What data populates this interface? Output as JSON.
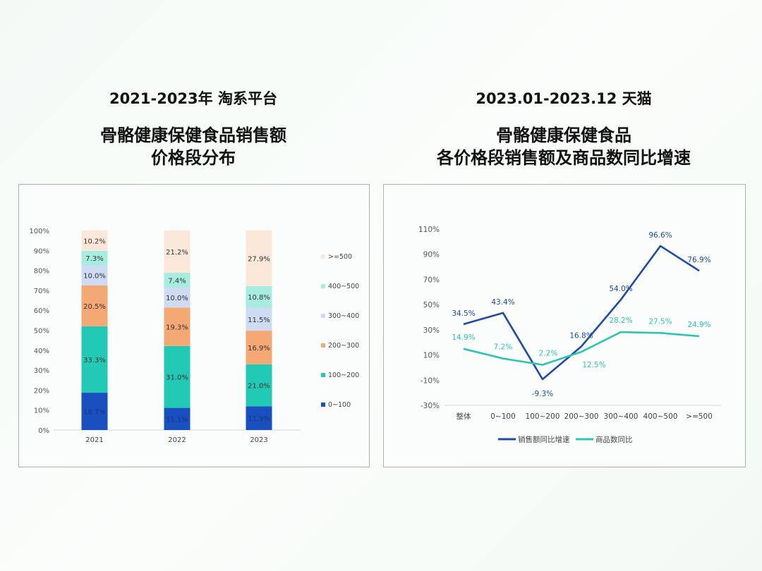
{
  "left": {
    "subtitle": "2021-2023年 淘系平台",
    "title_line1": "骨骼健康保健食品销售额",
    "title_line2": "价格段分布"
  },
  "right": {
    "subtitle": "2023.01-2023.12 天猫",
    "title_line1": "骨骼健康保健食品",
    "title_line2": "各价格段销售额及商品数同比增速"
  },
  "chart_data": [
    {
      "type": "bar",
      "stacked": true,
      "categories": [
        "2021",
        "2022",
        "2023"
      ],
      "ylim": [
        0,
        100
      ],
      "yticks": [
        "0%",
        "10%",
        "20%",
        "30%",
        "40%",
        "50%",
        "60%",
        "70%",
        "80%",
        "90%",
        "100%"
      ],
      "legend_position": "right",
      "series": [
        {
          "name": "0~100",
          "color": "#1a4fc0",
          "values": [
            18.7,
            11.1,
            11.9
          ]
        },
        {
          "name": "100~200",
          "color": "#22c9b4",
          "values": [
            33.3,
            31.0,
            21.0
          ]
        },
        {
          "name": "200~300",
          "color": "#f4a874",
          "values": [
            20.5,
            19.3,
            16.9
          ]
        },
        {
          "name": "300~400",
          "color": "#cfdaf3",
          "values": [
            10.0,
            10.0,
            11.5
          ]
        },
        {
          "name": "400~500",
          "color": "#a6ede0",
          "values": [
            7.3,
            7.4,
            10.8
          ]
        },
        {
          "name": ">=500",
          "color": "#fbe8da",
          "values": [
            10.2,
            21.2,
            27.9
          ]
        }
      ],
      "data_labels": [
        [
          "18.7%",
          "11.1%",
          "11.9%"
        ],
        [
          "33.3%",
          "31.0%",
          "21.0%"
        ],
        [
          "20.5%",
          "19.3%",
          "16.9%"
        ],
        [
          "10.0%",
          "10.0%",
          "11.5%"
        ],
        [
          "7.3%",
          "7.4%",
          "10.8%"
        ],
        [
          "10.2%",
          "21.2%",
          "27.9%"
        ]
      ],
      "legend_labels": [
        "0~100",
        "100~200",
        "200~300",
        "300~400",
        "400~500",
        ">=500"
      ],
      "grid": false
    },
    {
      "type": "line",
      "categories": [
        "整体",
        "0~100",
        "100~200",
        "200~300",
        "300~400",
        "400~500",
        ">=500"
      ],
      "ylim": [
        -30,
        110
      ],
      "yticks": [
        "-30%",
        "-10%",
        "10%",
        "30%",
        "50%",
        "70%",
        "90%",
        "110%"
      ],
      "legend_position": "bottom",
      "grid": false,
      "series": [
        {
          "name": "销售额同比增速",
          "color": "#1e4aa8",
          "values": [
            34.5,
            43.4,
            -9.3,
            16.8,
            54.0,
            96.6,
            76.9
          ],
          "labels": [
            "34.5%",
            "43.4%",
            "-9.3%",
            "16.8%",
            "54.0%",
            "96.6%",
            "76.9%"
          ]
        },
        {
          "name": "商品数同比",
          "color": "#2ec4b0",
          "values": [
            14.9,
            7.2,
            2.2,
            12.5,
            28.2,
            27.5,
            24.9
          ],
          "labels": [
            "14.9%",
            "7.2%",
            "2.2%",
            "12.5%",
            "28.2%",
            "27.5%",
            "24.9%"
          ]
        }
      ]
    }
  ]
}
